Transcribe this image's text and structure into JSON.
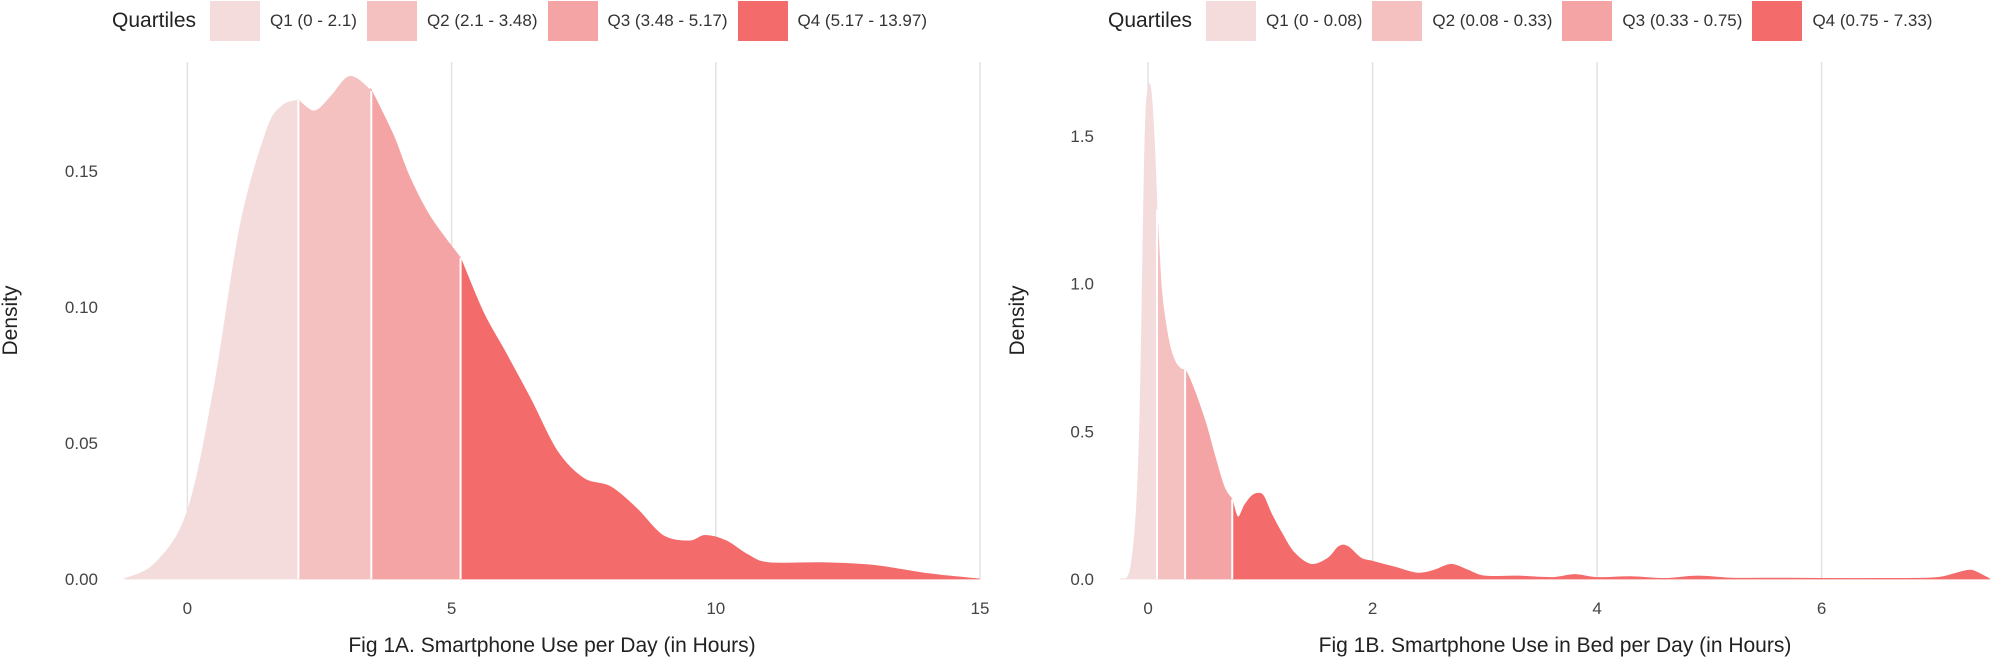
{
  "chart_data": [
    {
      "type": "area",
      "subtype": "density",
      "xlabel": "Fig 1A. Smartphone Use per Day (in Hours)",
      "ylabel": "Density",
      "xlim": [
        -1.2,
        15
      ],
      "ylim": [
        0,
        0.19
      ],
      "xticks": [
        0,
        5,
        10,
        15
      ],
      "yticks": [
        0.0,
        0.05,
        0.1,
        0.15
      ],
      "ytick_labels": [
        "0.00",
        "0.05",
        "0.10",
        "0.15"
      ],
      "grid": "vertical-major",
      "legend": {
        "position": "top",
        "title": "Quartiles",
        "entries": [
          {
            "label": "Q1 (0 - 2.1)",
            "range": [
              0,
              2.1
            ],
            "color": "#f4dcdc"
          },
          {
            "label": "Q2 (2.1 - 3.48)",
            "range": [
              2.1,
              3.48
            ],
            "color": "#f5c0c0"
          },
          {
            "label": "Q3 (3.48 - 5.17)",
            "range": [
              3.48,
              5.17
            ],
            "color": "#f4a4a4"
          },
          {
            "label": "Q4 (5.17 - 13.97)",
            "range": [
              5.17,
              13.97
            ],
            "color": "#f46b6b"
          }
        ]
      },
      "x": [
        -1.2,
        -0.6,
        0,
        0.5,
        1,
        1.5,
        1.8,
        2.1,
        2.4,
        2.7,
        3.0,
        3.2,
        3.5,
        3.9,
        4.2,
        4.6,
        5.17,
        5.6,
        6,
        6.5,
        7,
        7.5,
        8,
        8.5,
        9,
        9.5,
        9.8,
        10.2,
        10.6,
        11,
        12,
        13,
        14,
        15
      ],
      "y": [
        0.0,
        0.006,
        0.025,
        0.07,
        0.13,
        0.165,
        0.174,
        0.176,
        0.172,
        0.177,
        0.184,
        0.184,
        0.179,
        0.163,
        0.148,
        0.133,
        0.118,
        0.098,
        0.084,
        0.066,
        0.047,
        0.037,
        0.034,
        0.026,
        0.016,
        0.014,
        0.016,
        0.014,
        0.009,
        0.006,
        0.006,
        0.005,
        0.002,
        0.0
      ]
    },
    {
      "type": "area",
      "subtype": "density",
      "xlabel": "Fig 1B. Smartphone Use in Bed per Day (in Hours)",
      "ylabel": "Density",
      "xlim": [
        -0.25,
        7.5
      ],
      "ylim": [
        0,
        1.75
      ],
      "xticks": [
        0,
        2,
        4,
        6
      ],
      "yticks": [
        0.0,
        0.5,
        1.0,
        1.5
      ],
      "ytick_labels": [
        "0.0",
        "0.5",
        "1.0",
        "1.5"
      ],
      "grid": "vertical-major",
      "legend": {
        "position": "top",
        "title": "Quartiles",
        "entries": [
          {
            "label": "Q1 (0 - 0.08)",
            "range": [
              0,
              0.08
            ],
            "color": "#f4dcdc"
          },
          {
            "label": "Q2 (0.08 - 0.33)",
            "range": [
              0.08,
              0.33
            ],
            "color": "#f5c0c0"
          },
          {
            "label": "Q3 (0.33 - 0.75)",
            "range": [
              0.33,
              0.75
            ],
            "color": "#f4a4a4"
          },
          {
            "label": "Q4 (0.75 - 7.33)",
            "range": [
              0.75,
              7.33
            ],
            "color": "#f46b6b"
          }
        ]
      },
      "x": [
        -0.25,
        -0.15,
        -0.08,
        -0.03,
        0.0,
        0.03,
        0.06,
        0.08,
        0.12,
        0.16,
        0.2,
        0.25,
        0.3,
        0.33,
        0.38,
        0.45,
        0.52,
        0.6,
        0.68,
        0.75,
        0.8,
        0.86,
        0.92,
        0.98,
        1.03,
        1.1,
        1.2,
        1.3,
        1.45,
        1.6,
        1.7,
        1.78,
        1.9,
        2.0,
        2.2,
        2.4,
        2.55,
        2.7,
        2.85,
        3.0,
        3.3,
        3.6,
        3.8,
        4.0,
        4.3,
        4.6,
        4.9,
        5.2,
        5.6,
        6.0,
        6.5,
        7.0,
        7.2,
        7.33,
        7.45,
        7.5
      ],
      "y": [
        0.0,
        0.05,
        0.45,
        1.45,
        1.66,
        1.64,
        1.45,
        1.25,
        0.98,
        0.86,
        0.78,
        0.73,
        0.71,
        0.71,
        0.67,
        0.6,
        0.52,
        0.41,
        0.31,
        0.27,
        0.21,
        0.25,
        0.28,
        0.29,
        0.28,
        0.22,
        0.15,
        0.09,
        0.05,
        0.07,
        0.11,
        0.11,
        0.07,
        0.06,
        0.04,
        0.02,
        0.03,
        0.05,
        0.03,
        0.01,
        0.01,
        0.005,
        0.015,
        0.005,
        0.008,
        0.002,
        0.01,
        0.003,
        0.003,
        0.002,
        0.002,
        0.004,
        0.02,
        0.03,
        0.01,
        0.0
      ]
    }
  ]
}
